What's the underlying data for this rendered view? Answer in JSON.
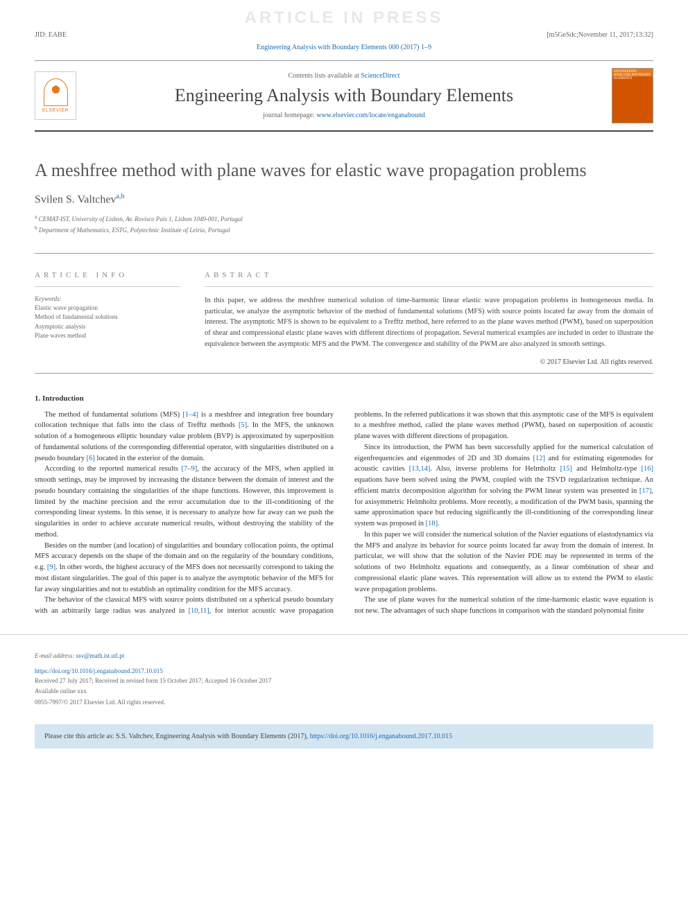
{
  "watermark": "ARTICLE IN PRESS",
  "top_left": "JID: EABE",
  "top_right": "[m5GeSdc;November 11, 2017;13:32]",
  "citation_header": "Engineering Analysis with Boundary Elements 000 (2017) 1–9",
  "header": {
    "contents_prefix": "Contents lists available at ",
    "contents_link": "ScienceDirect",
    "journal_name": "Engineering Analysis with Boundary Elements",
    "homepage_prefix": "journal homepage: ",
    "homepage_link": "www.elsevier.com/locate/enganabound",
    "elsevier_label": "ELSEVIER",
    "cover_text": "ENGINEERING ANALYSIS BOUNDARY ELEMENTS"
  },
  "title": "A meshfree method with plane waves for elastic wave propagation problems",
  "author_name": "Svilen S. Valtchev",
  "author_sup": "a,b",
  "affiliations": {
    "a": "CEMAT-IST, University of Lisbon, Av. Rovisco Pais 1, Lisbon 1049-001, Portugal",
    "b": "Department of Mathematics, ESTG, Polytechnic Institute of Leiria, Portugal"
  },
  "info": {
    "heading": "article info",
    "keywords_label": "Keywords:",
    "keywords": [
      "Elastic wave propagation",
      "Method of fundamental solutions",
      "Asymptotic analysis",
      "Plane waves method"
    ]
  },
  "abstract": {
    "heading": "abstract",
    "text": "In this paper, we address the meshfree numerical solution of time-harmonic linear elastic wave propagation problems in homogeneous media. In particular, we analyze the asymptotic behavior of the method of fundamental solutions (MFS) with source points located far away from the domain of interest. The asymptotic MFS is shown to be equivalent to a Trefftz method, here referred to as the plane waves method (PWM), based on superposition of shear and compressional elastic plane waves with different directions of propagation. Several numerical examples are included in order to illustrate the equivalence between the asymptotic MFS and the PWM. The convergence and stability of the PWM are also analyzed in smooth settings.",
    "copyright": "© 2017 Elsevier Ltd. All rights reserved."
  },
  "section1_heading": "1. Introduction",
  "body": {
    "p1_a": "The method of fundamental solutions (MFS) ",
    "p1_ref1": "[1–4]",
    "p1_b": " is a meshfree and integration free boundary collocation technique that falls into the class of Trefftz methods ",
    "p1_ref2": "[5]",
    "p1_c": ". In the MFS, the unknown solution of a homogeneous elliptic boundary value problem (BVP) is approximated by superposition of fundamental solutions of the corresponding differential operator, with singularities distributed on a pseudo boundary ",
    "p1_ref3": "[6]",
    "p1_d": " located in the exterior of the domain.",
    "p2_a": "According to the reported numerical results ",
    "p2_ref1": "[7–9]",
    "p2_b": ", the accuracy of the MFS, when applied in smooth settings, may be improved by increasing the distance between the domain of interest and the pseudo boundary containing the singularities of the shape functions. However, this improvement is limited by the machine precision and the error accumulation due to the ill-conditioning of the corresponding linear systems. In this sense, it is necessary to analyze how far away can we push the singularities in order to achieve accurate numerical results, without destroying the stability of the method.",
    "p3_a": "Besides on the number (and location) of singularities and boundary collocation points, the optimal MFS accuracy depends on the shape of the domain and on the regularity of the boundary conditions, e.g. ",
    "p3_ref1": "[9]",
    "p3_b": ". In other words, the highest accuracy of the MFS does not necessarily correspond to taking the most distant singularities. The goal of this paper is to analyze the asymptotic behavior of the MFS for far away singularities and not to establish an optimality condition for the MFS accuracy.",
    "p4_a": "The behavior of the classical MFS with source points distributed on a spherical pseudo boundary with an arbitrarily large radius was analyzed in ",
    "p4_ref1": "[10,11]",
    "p4_b": ", for interior acoustic wave propagation problems. In the referred publications it was shown that this asymptotic case of the MFS is equivalent to a meshfree method, called the plane waves method (PWM), based on superposition of acoustic plane waves with different directions of propagation.",
    "p5_a": "Since its introduction, the PWM has been successfully applied for the numerical calculation of eigenfrequencies and eigenmodes of 2D and 3D domains ",
    "p5_ref1": "[12]",
    "p5_b": " and for estimating eigenmodes for acoustic cavities ",
    "p5_ref2": "[13,14]",
    "p5_c": ". Also, inverse problems for Helmholtz ",
    "p5_ref3": "[15]",
    "p5_d": " and Helmholtz-type ",
    "p5_ref4": "[16]",
    "p5_e": " equations have been solved using the PWM, coupled with the TSVD regularization technique. An efficient matrix decomposition algorithm for solving the PWM linear system was presented in ",
    "p5_ref5": "[17]",
    "p5_f": ", for axisymmetric Helmholtz problems. More recently, a modification of the PWM basis, spanning the same approximation space but reducing significantly the ill-conditioning of the corresponding linear system was proposed in ",
    "p5_ref6": "[18]",
    "p5_g": ".",
    "p6": "In this paper we will consider the numerical solution of the Navier equations of elastodynamics via the MFS and analyze its behavior for source points located far away from the domain of interest. In particular, we will show that the solution of the Navier PDE may be represented in terms of the solutions of two Helmholtz equations and consequently, as a linear combination of shear and compressional elastic plane waves. This representation will allow us to extend the PWM to elastic wave propagation problems.",
    "p7": "The use of plane waves for the numerical solution of the time-harmonic elastic wave equation is not new. The advantages of such shape functions in comparison with the standard polynomial finite"
  },
  "footer": {
    "email_label": "E-mail address: ",
    "email": "ssv@math.ist.utl.pt",
    "doi": "https://doi.org/10.1016/j.enganabound.2017.10.015",
    "dates": "Received 27 July 2017; Received in revised form 15 October 2017; Accepted 16 October 2017",
    "available": "Available online xxx",
    "issn": "0955-7997/© 2017 Elsevier Ltd. All rights reserved."
  },
  "cite_box": {
    "prefix": "Please cite this article as: S.S. Valtchev, Engineering Analysis with Boundary Elements (2017), ",
    "link": "https://doi.org/10.1016/j.enganabound.2017.10.015"
  },
  "colors": {
    "link": "#1a6baf",
    "elsevier_orange": "#e67817",
    "cite_bg": "#d4e5f2",
    "watermark": "#e8e8e8"
  }
}
